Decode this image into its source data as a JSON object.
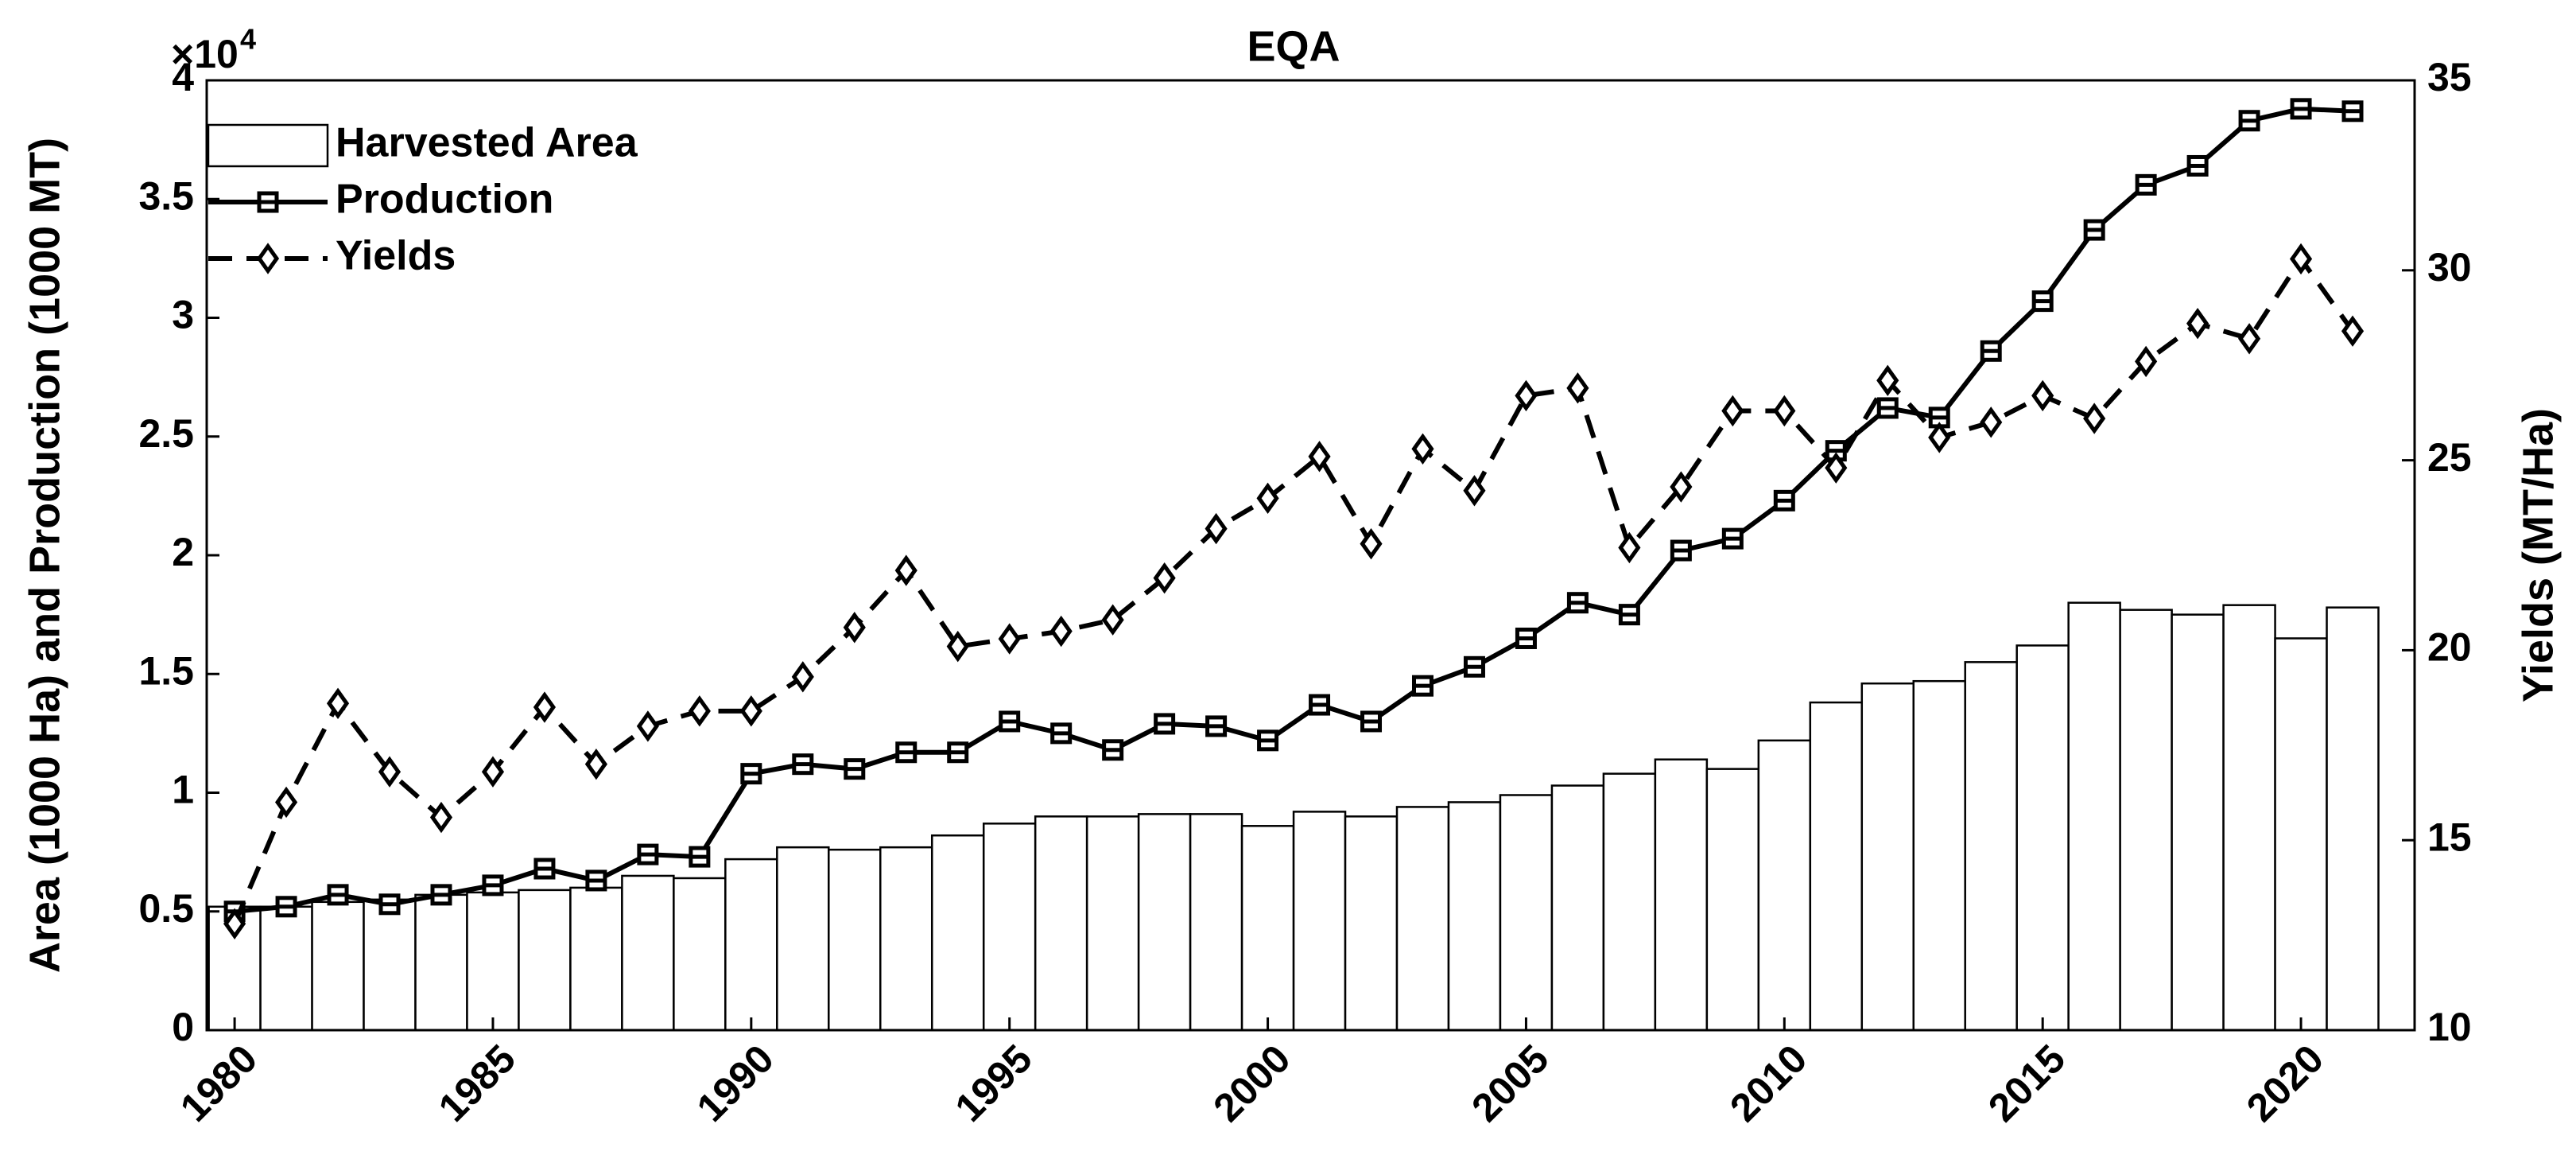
{
  "chart_data": {
    "type": "bar-line",
    "title": "EQA",
    "ylabel": "Area (1000 Ha) and Production (1000 MT)",
    "y2label": "Yields (MT/Ha)",
    "multiplier_base": "×10",
    "multiplier_exponent": "4",
    "x": [
      1980,
      1981,
      1982,
      1983,
      1984,
      1985,
      1986,
      1987,
      1988,
      1989,
      1990,
      1991,
      1992,
      1993,
      1994,
      1995,
      1996,
      1997,
      1998,
      1999,
      2000,
      2001,
      2002,
      2003,
      2004,
      2005,
      2006,
      2007,
      2008,
      2009,
      2010,
      2011,
      2012,
      2013,
      2014,
      2015,
      2016,
      2017,
      2018,
      2019,
      2020,
      2021
    ],
    "xlim": [
      1979.46,
      2022.2
    ],
    "xticks": [
      1980,
      1985,
      1990,
      1995,
      2000,
      2005,
      2010,
      2015,
      2020
    ],
    "ylim": [
      0,
      4
    ],
    "yticks": [
      0,
      0.5,
      1,
      1.5,
      2,
      2.5,
      3,
      3.5,
      4
    ],
    "y2lim": [
      10,
      35
    ],
    "y2ticks": [
      10,
      15,
      20,
      25,
      30,
      35
    ],
    "legend": "upper left",
    "series": [
      {
        "name": "Harvested Area",
        "type": "bar",
        "color": "#ffffff",
        "values": [
          0.52,
          0.52,
          0.54,
          0.55,
          0.57,
          0.58,
          0.59,
          0.6,
          0.65,
          0.64,
          0.72,
          0.77,
          0.76,
          0.77,
          0.82,
          0.87,
          0.9,
          0.9,
          0.91,
          0.91,
          0.86,
          0.92,
          0.9,
          0.94,
          0.96,
          0.99,
          1.03,
          1.08,
          1.14,
          1.1,
          1.22,
          1.38,
          1.46,
          1.47,
          1.55,
          1.62,
          1.8,
          1.77,
          1.75,
          1.79,
          1.65,
          1.78
        ]
      },
      {
        "name": "Production",
        "type": "line",
        "color": "#000000",
        "dash": false,
        "marker": "square",
        "values": [
          0.5,
          0.52,
          0.57,
          0.53,
          0.57,
          0.61,
          0.68,
          0.63,
          0.74,
          0.73,
          1.08,
          1.12,
          1.1,
          1.17,
          1.17,
          1.3,
          1.25,
          1.18,
          1.29,
          1.28,
          1.22,
          1.37,
          1.3,
          1.45,
          1.53,
          1.65,
          1.8,
          1.75,
          2.02,
          2.07,
          2.23,
          2.44,
          2.62,
          2.58,
          2.86,
          3.07,
          3.37,
          3.56,
          3.64,
          3.83,
          3.88,
          3.87
        ]
      },
      {
        "name": "Yields",
        "type": "line",
        "color": "#000000",
        "dash": true,
        "marker": "diamond",
        "axis": "y2",
        "values": [
          12.8,
          16.0,
          18.6,
          16.8,
          15.6,
          16.8,
          18.5,
          17.0,
          18.0,
          18.4,
          18.4,
          19.3,
          20.6,
          22.1,
          20.1,
          20.3,
          20.5,
          20.8,
          21.9,
          23.2,
          24.0,
          25.1,
          22.8,
          25.3,
          24.2,
          26.7,
          26.9,
          22.7,
          24.3,
          26.3,
          26.3,
          24.8,
          27.1,
          25.6,
          26.0,
          26.7,
          26.1,
          27.6,
          28.6,
          28.2,
          30.3,
          28.4
        ]
      }
    ]
  }
}
